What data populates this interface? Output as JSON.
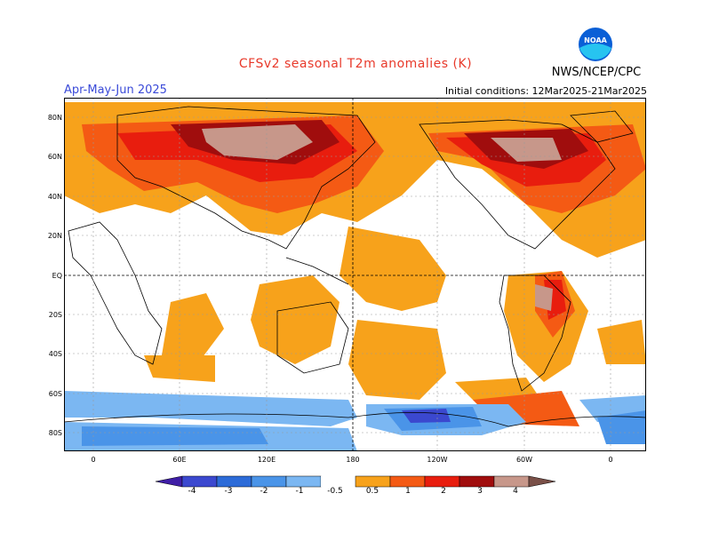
{
  "header": {
    "title": "CFSv2 seasonal T2m anomalies (K)",
    "period": "Apr-May-Jun 2025",
    "initial_conditions": "Initial conditions: 12Mar2025-21Mar2025",
    "agency": "NWS/NCEP/CPC",
    "logo_text": "NOAA"
  },
  "map": {
    "lat_labels": [
      "80N",
      "60N",
      "40N",
      "20N",
      "EQ",
      "20S",
      "40S",
      "60S",
      "80S"
    ],
    "lon_labels": [
      "0",
      "60E",
      "120E",
      "180",
      "120W",
      "60W",
      "0"
    ]
  },
  "colorbar": {
    "labels": [
      "-4",
      "-3",
      "-2",
      "-1",
      "-0.5",
      "0.5",
      "1",
      "2",
      "3",
      "4"
    ],
    "colors": [
      "#3f1ea6",
      "#3b48cf",
      "#2c6bd8",
      "#4a94e8",
      "#7bb7f2",
      "#ffffff",
      "#f7a21b",
      "#f45a14",
      "#e81d0e",
      "#a00d0d",
      "#c7978a",
      "#7a5048"
    ]
  }
}
